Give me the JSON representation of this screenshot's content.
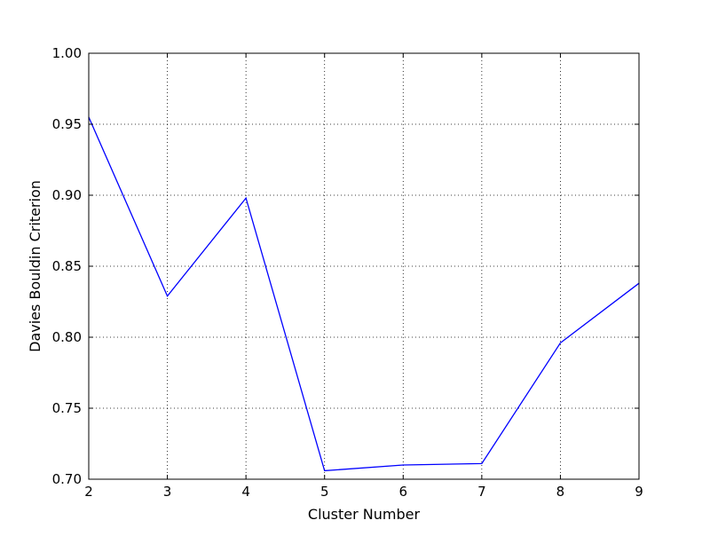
{
  "chart_data": {
    "type": "line",
    "title": "",
    "xlabel": "Cluster Number",
    "ylabel": "Davies Bouldin Criterion",
    "xlim": [
      2,
      9
    ],
    "ylim": [
      0.7,
      1.0
    ],
    "xticks": [
      "2",
      "3",
      "4",
      "5",
      "6",
      "7",
      "8",
      "9"
    ],
    "yticks": [
      "0.70",
      "0.75",
      "0.80",
      "0.85",
      "0.90",
      "0.95",
      "1.00"
    ],
    "grid": true,
    "legend": false,
    "series": [
      {
        "x": [
          2,
          3,
          4,
          5,
          6,
          7,
          8,
          9
        ],
        "y": [
          0.955,
          0.829,
          0.898,
          0.706,
          0.71,
          0.711,
          0.796,
          0.838
        ],
        "color": "#0000ff"
      }
    ]
  }
}
